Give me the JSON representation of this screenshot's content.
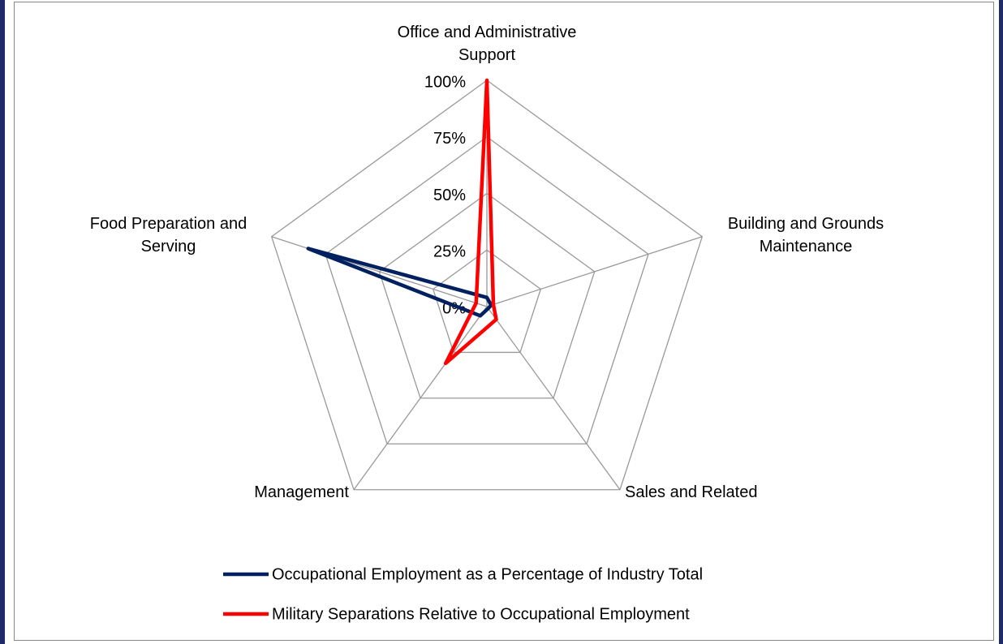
{
  "chart_data": {
    "type": "radar",
    "categories": [
      "Office and Administrative Support",
      "Building and Grounds Maintenance",
      "Sales and Related",
      "Management",
      "Food Preparation and Serving"
    ],
    "series": [
      {
        "name": "Occupational Employment as a Percentage of Industry Total",
        "color": "#002060",
        "values": [
          4,
          2,
          1,
          5,
          83
        ]
      },
      {
        "name": "Military Separations Relative to Occupational Employment",
        "color": "#ff0000",
        "values": [
          100,
          3,
          7,
          31,
          5
        ]
      }
    ],
    "rlim": [
      0,
      100
    ],
    "rticks": [
      {
        "value": 0,
        "label": "0%"
      },
      {
        "value": 25,
        "label": "25%"
      },
      {
        "value": 50,
        "label": "50%"
      },
      {
        "value": 75,
        "label": "75%"
      },
      {
        "value": 100,
        "label": "100%"
      }
    ],
    "grid": true,
    "legend": "bottom"
  }
}
